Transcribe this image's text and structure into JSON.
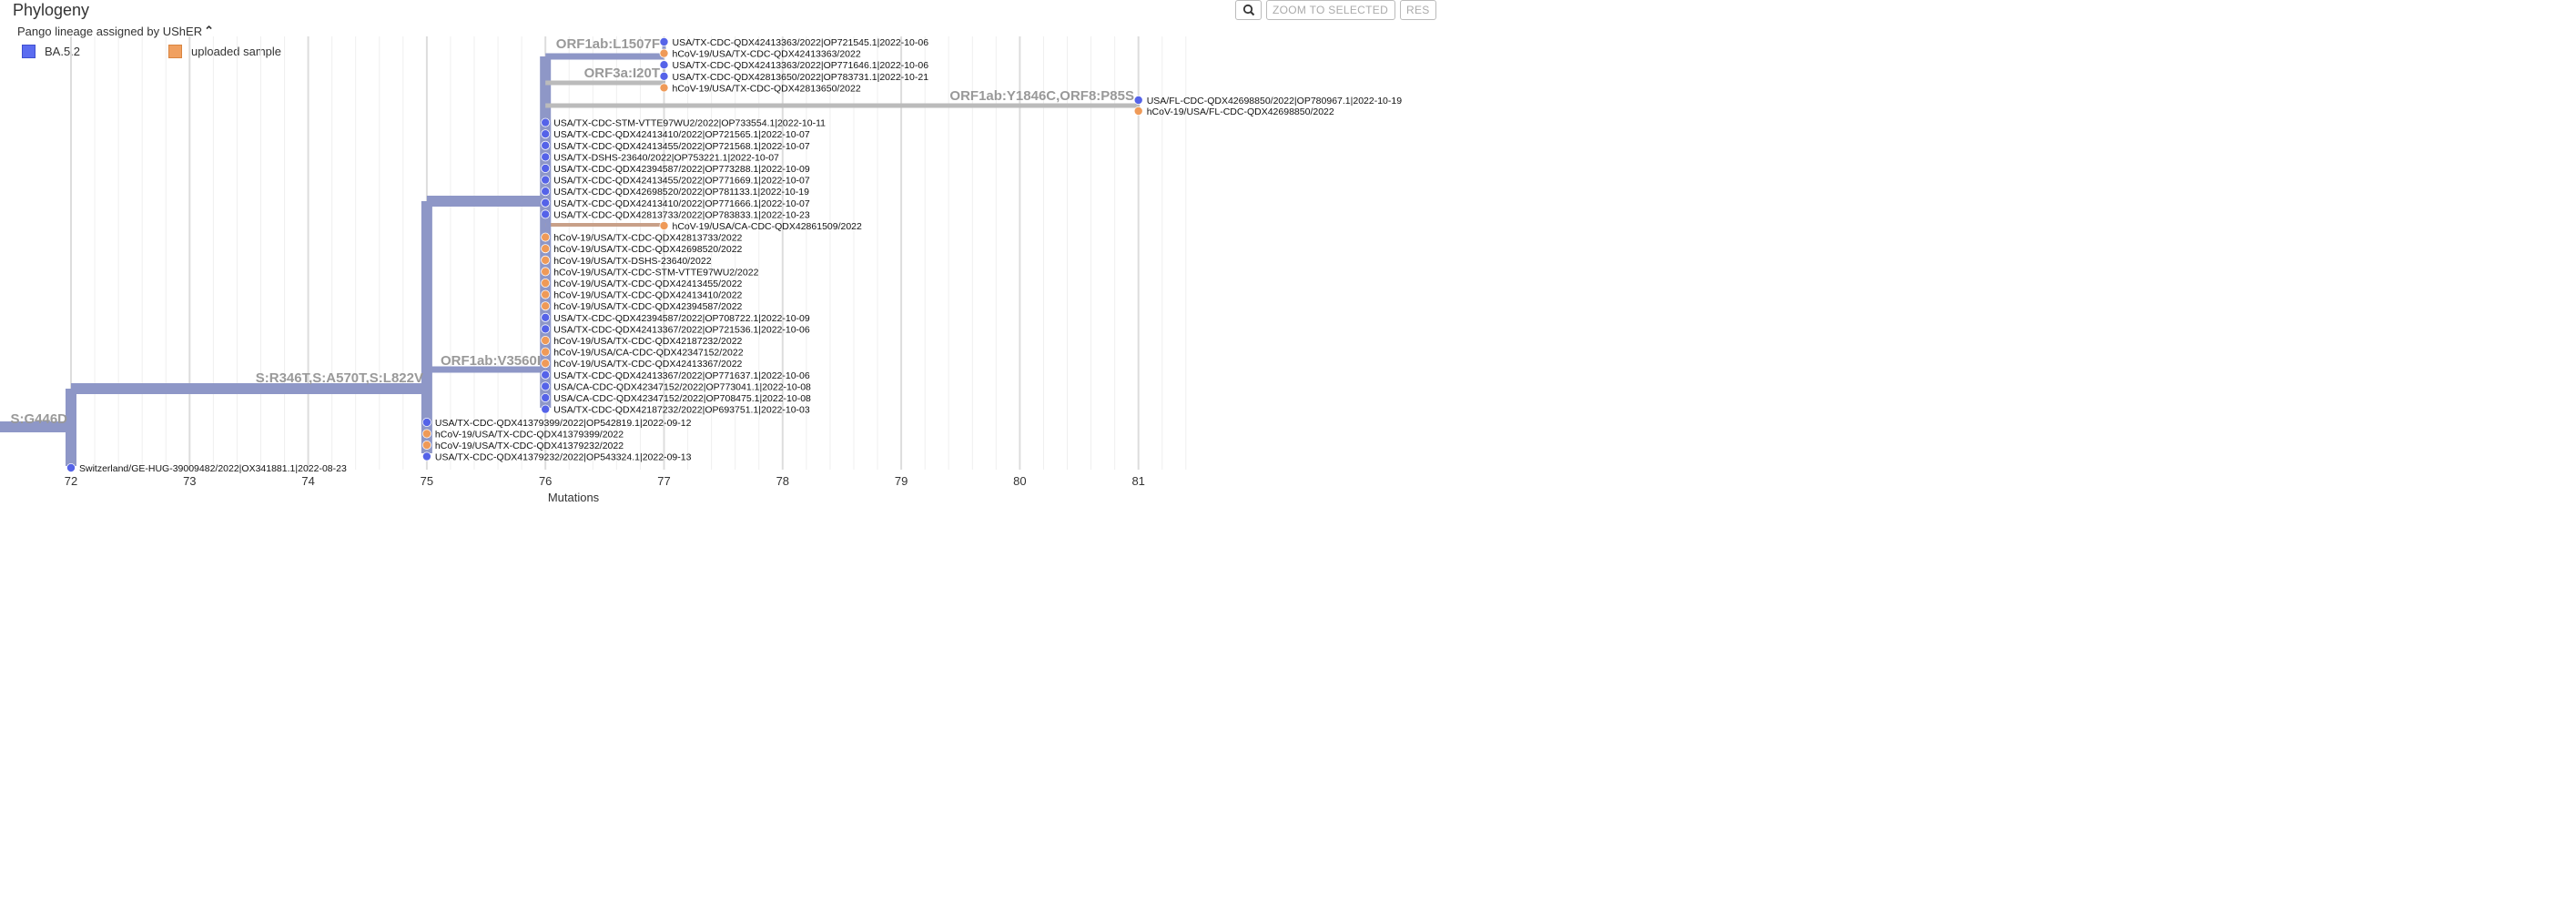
{
  "title": "Phylogeny",
  "lineage_label": "Pango lineage assigned by UShER",
  "lineage_toggle_icon": "chevron-up-icon",
  "legend": [
    {
      "label": "BA.5.2",
      "color": "#5b6cf0"
    },
    {
      "label": "uploaded sample",
      "color": "#f0a060"
    }
  ],
  "toolbar": {
    "zoom_icon": "magnifier-icon",
    "zoom_selected": "ZOOM TO SELECTED",
    "reset": "RES"
  },
  "colors": {
    "branch": "#8e97c7",
    "branch_light": "#bbbbbb",
    "branch_orange": "#c8a088",
    "blue": "#5563e8",
    "orange": "#ef9a58"
  },
  "chart_data": {
    "type": "tree",
    "xlabel": "Mutations",
    "xticks": [
      "72",
      "73",
      "74",
      "75",
      "76",
      "77",
      "78",
      "79",
      "80",
      "81"
    ],
    "mutations": [
      "S:G446D",
      "S:R346T,S:A570T,S:L822V",
      "ORF1ab:V3560I",
      "ORF1ab:L1507F",
      "ORF3a:I20T",
      "ORF1ab:Y1846C,ORF8:P85S"
    ],
    "leaves": [
      {
        "label": "USA/TX-CDC-QDX42413363/2022|OP721545.1|2022-10-06",
        "x": 77,
        "type": "reference"
      },
      {
        "label": "hCoV-19/USA/TX-CDC-QDX42413363/2022",
        "x": 77,
        "type": "uploaded"
      },
      {
        "label": "USA/TX-CDC-QDX42413363/2022|OP771646.1|2022-10-06",
        "x": 77,
        "type": "reference"
      },
      {
        "label": "USA/TX-CDC-QDX42813650/2022|OP783731.1|2022-10-21",
        "x": 77,
        "type": "reference"
      },
      {
        "label": "hCoV-19/USA/TX-CDC-QDX42813650/2022",
        "x": 77,
        "type": "uploaded"
      },
      {
        "label": "USA/FL-CDC-QDX42698850/2022|OP780967.1|2022-10-19",
        "x": 81,
        "type": "reference"
      },
      {
        "label": "hCoV-19/USA/FL-CDC-QDX42698850/2022",
        "x": 81,
        "type": "uploaded"
      },
      {
        "label": "USA/TX-CDC-STM-VTTE97WU2/2022|OP733554.1|2022-10-11",
        "x": 76,
        "type": "reference"
      },
      {
        "label": "USA/TX-CDC-QDX42413410/2022|OP721565.1|2022-10-07",
        "x": 76,
        "type": "reference"
      },
      {
        "label": "USA/TX-CDC-QDX42413455/2022|OP721568.1|2022-10-07",
        "x": 76,
        "type": "reference"
      },
      {
        "label": "USA/TX-DSHS-23640/2022|OP753221.1|2022-10-07",
        "x": 76,
        "type": "reference"
      },
      {
        "label": "USA/TX-CDC-QDX42394587/2022|OP773288.1|2022-10-09",
        "x": 76,
        "type": "reference"
      },
      {
        "label": "USA/TX-CDC-QDX42413455/2022|OP771669.1|2022-10-07",
        "x": 76,
        "type": "reference"
      },
      {
        "label": "USA/TX-CDC-QDX42698520/2022|OP781133.1|2022-10-19",
        "x": 76,
        "type": "reference"
      },
      {
        "label": "USA/TX-CDC-QDX42413410/2022|OP771666.1|2022-10-07",
        "x": 76,
        "type": "reference"
      },
      {
        "label": "USA/TX-CDC-QDX42813733/2022|OP783833.1|2022-10-23",
        "x": 76,
        "type": "reference"
      },
      {
        "label": "hCoV-19/USA/CA-CDC-QDX42861509/2022",
        "x": 77,
        "type": "uploaded"
      },
      {
        "label": "hCoV-19/USA/TX-CDC-QDX42813733/2022",
        "x": 76,
        "type": "uploaded"
      },
      {
        "label": "hCoV-19/USA/TX-CDC-QDX42698520/2022",
        "x": 76,
        "type": "uploaded"
      },
      {
        "label": "hCoV-19/USA/TX-DSHS-23640/2022",
        "x": 76,
        "type": "uploaded"
      },
      {
        "label": "hCoV-19/USA/TX-CDC-STM-VTTE97WU2/2022",
        "x": 76,
        "type": "uploaded"
      },
      {
        "label": "hCoV-19/USA/TX-CDC-QDX42413455/2022",
        "x": 76,
        "type": "uploaded"
      },
      {
        "label": "hCoV-19/USA/TX-CDC-QDX42413410/2022",
        "x": 76,
        "type": "uploaded"
      },
      {
        "label": "hCoV-19/USA/TX-CDC-QDX42394587/2022",
        "x": 76,
        "type": "uploaded"
      },
      {
        "label": "USA/TX-CDC-QDX42394587/2022|OP708722.1|2022-10-09",
        "x": 76,
        "type": "reference"
      },
      {
        "label": "USA/TX-CDC-QDX42413367/2022|OP721536.1|2022-10-06",
        "x": 76,
        "type": "reference"
      },
      {
        "label": "hCoV-19/USA/TX-CDC-QDX42187232/2022",
        "x": 76,
        "type": "uploaded"
      },
      {
        "label": "hCoV-19/USA/CA-CDC-QDX42347152/2022",
        "x": 76,
        "type": "uploaded"
      },
      {
        "label": "hCoV-19/USA/TX-CDC-QDX42413367/2022",
        "x": 76,
        "type": "uploaded"
      },
      {
        "label": "USA/TX-CDC-QDX42413367/2022|OP771637.1|2022-10-06",
        "x": 76,
        "type": "reference"
      },
      {
        "label": "USA/CA-CDC-QDX42347152/2022|OP773041.1|2022-10-08",
        "x": 76,
        "type": "reference"
      },
      {
        "label": "USA/CA-CDC-QDX42347152/2022|OP708475.1|2022-10-08",
        "x": 76,
        "type": "reference"
      },
      {
        "label": "USA/TX-CDC-QDX42187232/2022|OP693751.1|2022-10-03",
        "x": 76,
        "type": "reference"
      },
      {
        "label": "USA/TX-CDC-QDX41379399/2022|OP542819.1|2022-09-12",
        "x": 75,
        "type": "reference"
      },
      {
        "label": "hCoV-19/USA/TX-CDC-QDX41379399/2022",
        "x": 75,
        "type": "uploaded"
      },
      {
        "label": "hCoV-19/USA/TX-CDC-QDX41379232/2022",
        "x": 75,
        "type": "uploaded"
      },
      {
        "label": "USA/TX-CDC-QDX41379232/2022|OP543324.1|2022-09-13",
        "x": 75,
        "type": "reference"
      },
      {
        "label": "Switzerland/GE-HUG-39009482/2022|OX341881.1|2022-08-23",
        "x": 72,
        "type": "reference"
      }
    ]
  }
}
